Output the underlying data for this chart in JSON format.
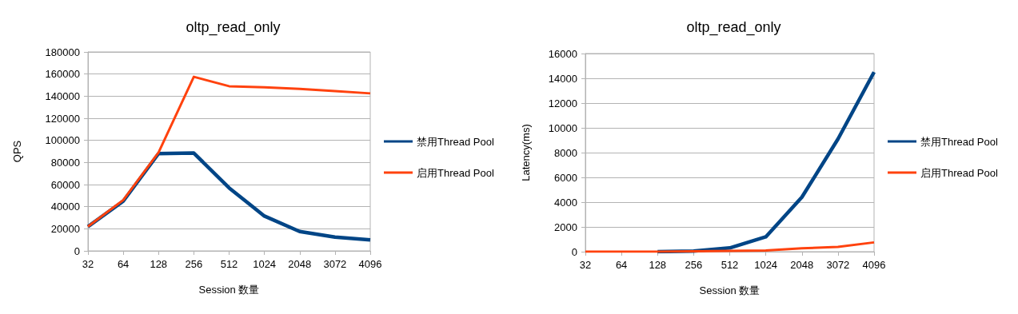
{
  "chart_data": [
    {
      "type": "line",
      "title": "oltp_read_only",
      "xlabel": "Session 数量",
      "ylabel": "QPS",
      "categories": [
        "32",
        "64",
        "128",
        "256",
        "512",
        "1024",
        "2048",
        "3072",
        "4096"
      ],
      "series": [
        {
          "name": "禁用Thread Pool",
          "color": "#004586",
          "values": [
            22000,
            45000,
            88000,
            88500,
            57000,
            31500,
            17500,
            12500,
            10000
          ]
        },
        {
          "name": "启用Thread Pool",
          "color": "#ff420e",
          "values": [
            22000,
            46000,
            89000,
            157500,
            149000,
            148000,
            146500,
            144500,
            142500
          ]
        }
      ],
      "ylim": [
        0,
        180000
      ],
      "yticks": [
        0,
        20000,
        40000,
        60000,
        80000,
        100000,
        120000,
        140000,
        160000,
        180000
      ],
      "grid": "y",
      "legend": "right",
      "marker": "none",
      "line_style": "solid"
    },
    {
      "type": "line",
      "title": "oltp_read_only",
      "xlabel": "Session 数量",
      "ylabel": "Latency(ms)",
      "categories": [
        "32",
        "64",
        "128",
        "256",
        "512",
        "1024",
        "2048",
        "3072",
        "4096"
      ],
      "series": [
        {
          "name": "禁用Thread Pool",
          "color": "#004586",
          "values": [
            null,
            null,
            0,
            50,
            300,
            1200,
            4400,
            9100,
            14500
          ]
        },
        {
          "name": "启用Thread Pool",
          "color": "#ff420e",
          "values": [
            0,
            0,
            0,
            30,
            60,
            100,
            280,
            380,
            750
          ]
        }
      ],
      "ylim": [
        0,
        16000
      ],
      "yticks": [
        0,
        2000,
        4000,
        6000,
        8000,
        10000,
        12000,
        14000,
        16000
      ],
      "grid": "y",
      "legend": "right",
      "marker": "none",
      "line_style": "solid"
    }
  ]
}
